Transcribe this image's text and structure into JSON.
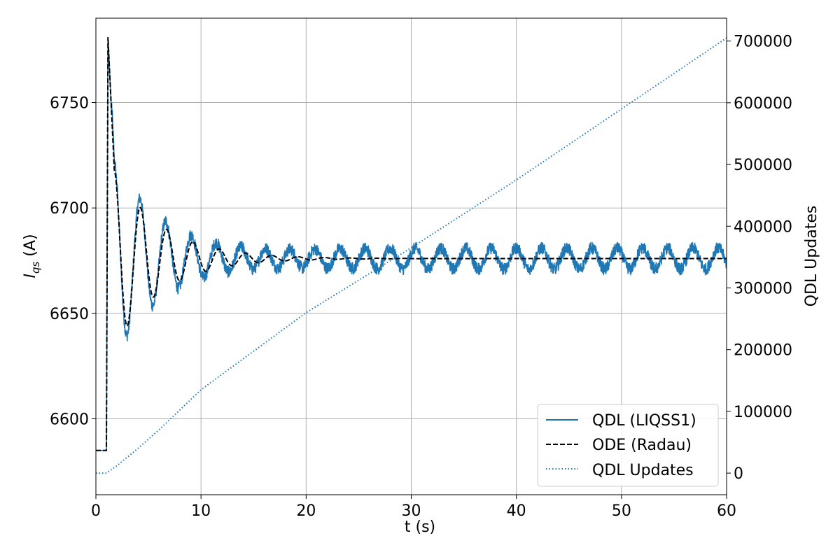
{
  "chart_data": {
    "type": "line",
    "xlabel": "t (s)",
    "ylabel_left": {
      "main": "I",
      "sub": "qs",
      "unit": " (A)"
    },
    "ylabel_right": "QDL Updates",
    "xlim": [
      0,
      60
    ],
    "ylim_left": [
      6564,
      6790
    ],
    "ylim_right": [
      -35000,
      737000
    ],
    "x_ticks": [
      0,
      10,
      20,
      30,
      40,
      50,
      60
    ],
    "y_left_ticks": [
      6600,
      6650,
      6700,
      6750
    ],
    "y_right_ticks": [
      0,
      100000,
      200000,
      300000,
      400000,
      500000,
      600000,
      700000
    ],
    "grid": true,
    "legend_position": "lower-right",
    "series": [
      {
        "name": "QDL (LIQSS1)",
        "axis": "left",
        "style": "solid",
        "color": "#1f77b4",
        "initial": 6585,
        "step_time": 1.0,
        "peak": 6781,
        "final": 6676,
        "damped_amplitude": 42,
        "damped_period": 2.5,
        "damping_tau": 4.5,
        "sustained_amplitude": 5,
        "noise": 3
      },
      {
        "name": "ODE (Radau)",
        "axis": "left",
        "style": "dashed",
        "color": "#000000",
        "initial": 6585,
        "step_time": 1.0,
        "peak": 6781,
        "final": 6676,
        "damped_amplitude": 42,
        "damped_period": 2.5,
        "damping_tau": 4.5
      },
      {
        "name": "QDL Updates",
        "axis": "right",
        "style": "dotted",
        "color": "#1f77b4",
        "x": [
          0,
          1,
          2,
          4,
          6,
          10,
          20,
          30,
          40,
          50,
          60
        ],
        "values": [
          0,
          0,
          12000,
          40000,
          70000,
          135000,
          260000,
          365000,
          475000,
          590000,
          705000
        ]
      }
    ]
  }
}
